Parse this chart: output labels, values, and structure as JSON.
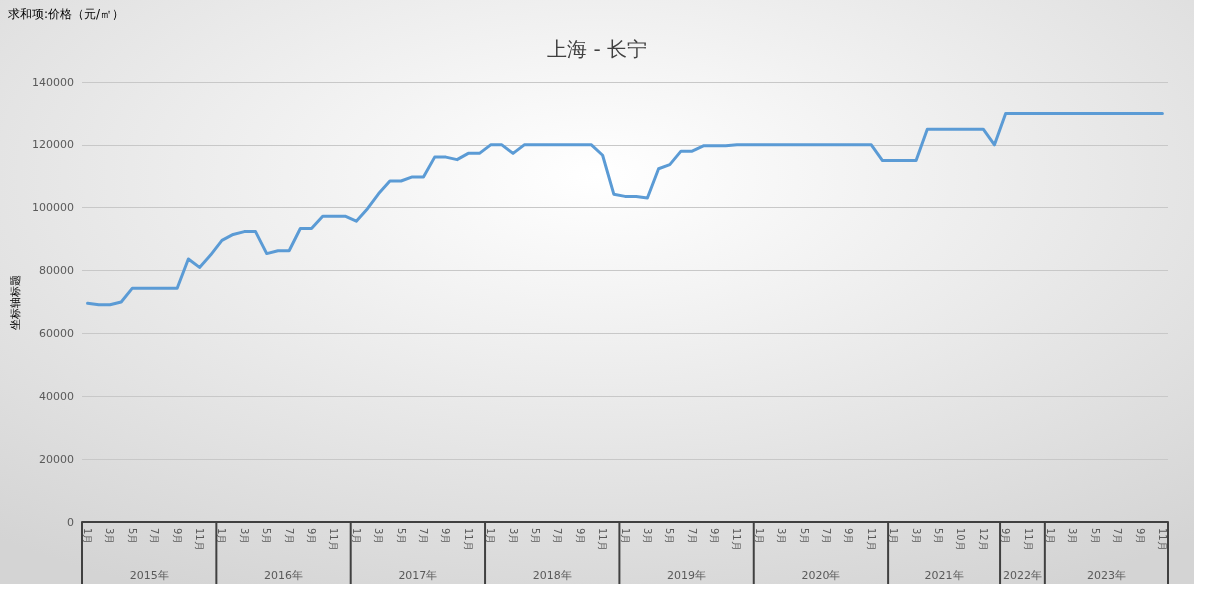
{
  "chart_data": {
    "type": "line",
    "title": "上海 - 长宁",
    "ylabel": "坐标轴标题",
    "annotations": [
      "求和项:价格（元/㎡）",
      "2015年",
      "2016年",
      "2017年",
      "2018年",
      "2019年",
      "2020年",
      "2021年",
      "2022年",
      "2023年"
    ],
    "categories": [
      "1月",
      null,
      "3月",
      null,
      "5月",
      null,
      "7月",
      null,
      "9月",
      null,
      "11月",
      null,
      "1月",
      null,
      "3月",
      null,
      "5月",
      null,
      "7月",
      null,
      "9月",
      null,
      "11月",
      null,
      "1月",
      null,
      "3月",
      null,
      "5月",
      null,
      "7月",
      null,
      "9月",
      null,
      "11月",
      null,
      "1月",
      null,
      "3月",
      null,
      "5月",
      null,
      "7月",
      null,
      "9月",
      null,
      "11月",
      null,
      "1月",
      null,
      "3月",
      null,
      "5月",
      null,
      "7月",
      null,
      "9月",
      null,
      "11月",
      null,
      "1月",
      null,
      "3月",
      null,
      "5月",
      null,
      "7月",
      null,
      "9月",
      null,
      "11月",
      null,
      "1月",
      null,
      "3月",
      null,
      "5月",
      null,
      "10月",
      null,
      "12月",
      null,
      "9月",
      null,
      "11月",
      null,
      "1月",
      null,
      "3月",
      null,
      "5月",
      null,
      "7月",
      null,
      "9月",
      null,
      "11月"
    ],
    "series": [
      {
        "color": "#5b9bd5",
        "values": [
          69600,
          69100,
          69100,
          70000,
          74400,
          74400,
          74400,
          74400,
          74400,
          83700,
          81000,
          85000,
          89600,
          91500,
          92400,
          92400,
          85400,
          86300,
          86300,
          93400,
          93400,
          97300,
          97300,
          97300,
          95700,
          99700,
          104500,
          108500,
          108500,
          109800,
          109800,
          116100,
          116100,
          115300,
          117300,
          117300,
          120000,
          120000,
          117300,
          120000,
          120000,
          120000,
          120000,
          120000,
          120000,
          120000,
          116700,
          104300,
          103600,
          103600,
          103100,
          112400,
          113700,
          118000,
          118000,
          119700,
          119700,
          119700,
          120000,
          120000,
          120000,
          120000,
          120000,
          120000,
          120000,
          120000,
          120000,
          120000,
          120000,
          120000,
          120000,
          115000,
          115000,
          115000,
          115000,
          125000,
          125000,
          125000,
          125000,
          125000,
          125000,
          120000,
          130000,
          130000,
          130000,
          130000,
          130000,
          130000,
          130000,
          130000,
          130000,
          130000,
          130000,
          130000,
          130000,
          130000,
          130000
        ]
      }
    ],
    "ylim": [
      0,
      140000
    ],
    "yticks": [
      0,
      20000,
      40000,
      60000,
      80000,
      100000,
      120000,
      140000
    ],
    "grid": "y",
    "marker": "none",
    "line_style": "solid"
  }
}
